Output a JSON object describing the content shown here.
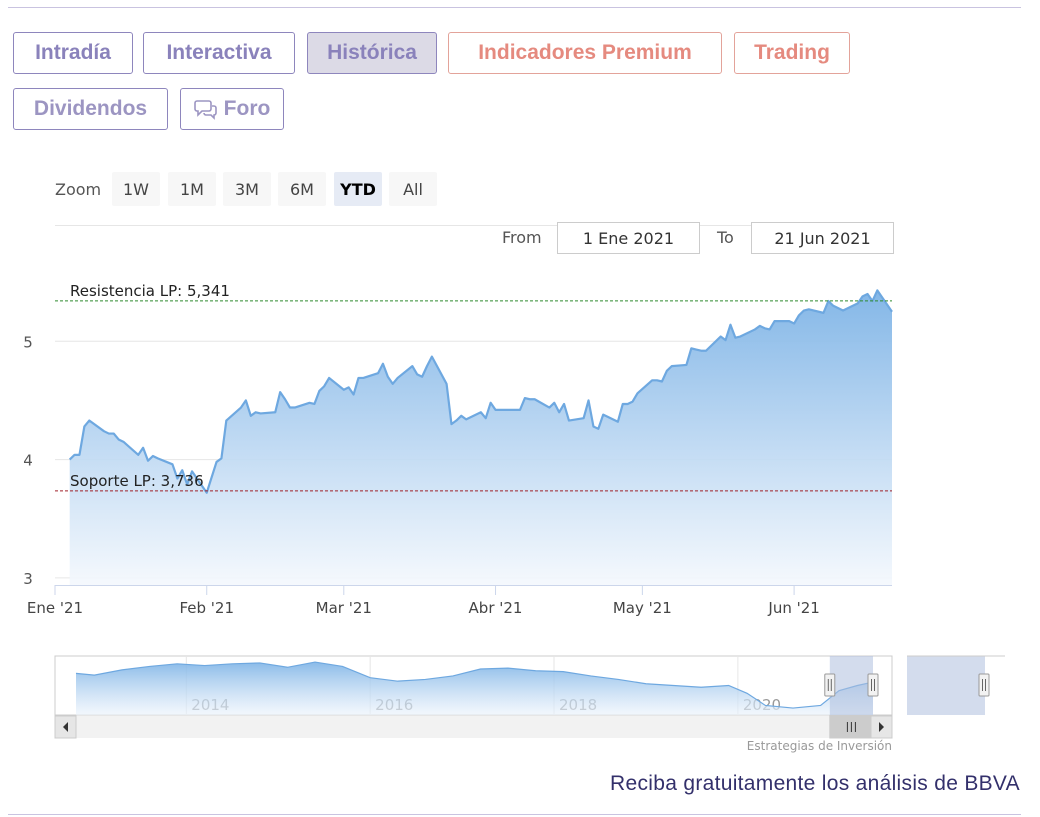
{
  "tabs": [
    {
      "label": "Intradía",
      "style": "purple"
    },
    {
      "label": "Interactiva",
      "style": "purple"
    },
    {
      "label": "Histórica",
      "style": "purple active"
    },
    {
      "label": "Indicadores Premium",
      "style": "red"
    },
    {
      "label": "Trading",
      "style": "red"
    },
    {
      "label": "Dividendos",
      "style": "gray"
    },
    {
      "label": "Foro",
      "style": "gray",
      "icon": "chat-bubbles-icon"
    }
  ],
  "range_selector": {
    "zoom_label": "Zoom",
    "buttons": [
      "1W",
      "1M",
      "3M",
      "6M",
      "YTD",
      "All"
    ],
    "selected": "YTD",
    "from_label": "From",
    "from_value": "1 Ene 2021",
    "to_label": "To",
    "to_value": "21 Jun 2021"
  },
  "chart_data": {
    "type": "area",
    "title": "",
    "xlabel": "",
    "ylabel": "",
    "ylim": [
      2.94,
      5.67
    ],
    "yticks": [
      3,
      4,
      5
    ],
    "xticks": [
      {
        "date": "2021-01-01",
        "label": "Ene '21"
      },
      {
        "date": "2021-02-01",
        "label": "Feb '21"
      },
      {
        "date": "2021-03-01",
        "label": "Mar '21"
      },
      {
        "date": "2021-04-01",
        "label": "Abr '21"
      },
      {
        "date": "2021-05-01",
        "label": "May '21"
      },
      {
        "date": "2021-06-01",
        "label": "Jun '21"
      }
    ],
    "xlim": [
      "2021-01-01",
      "2021-06-21"
    ],
    "series": [
      {
        "x": [
          "2021-01-04",
          "2021-01-05",
          "2021-01-06",
          "2021-01-07",
          "2021-01-08",
          "2021-01-11",
          "2021-01-12",
          "2021-01-13",
          "2021-01-14",
          "2021-01-15",
          "2021-01-18",
          "2021-01-19",
          "2021-01-20",
          "2021-01-21",
          "2021-01-22",
          "2021-01-25",
          "2021-01-26",
          "2021-01-27",
          "2021-01-28",
          "2021-01-29",
          "2021-02-01",
          "2021-02-02",
          "2021-02-03",
          "2021-02-04",
          "2021-02-05",
          "2021-02-08",
          "2021-02-09",
          "2021-02-10",
          "2021-02-11",
          "2021-02-12",
          "2021-02-15",
          "2021-02-16",
          "2021-02-17",
          "2021-02-18",
          "2021-02-19",
          "2021-02-22",
          "2021-02-23",
          "2021-02-24",
          "2021-02-25",
          "2021-02-26",
          "2021-03-01",
          "2021-03-02",
          "2021-03-03",
          "2021-03-04",
          "2021-03-05",
          "2021-03-08",
          "2021-03-09",
          "2021-03-10",
          "2021-03-11",
          "2021-03-12",
          "2021-03-15",
          "2021-03-16",
          "2021-03-17",
          "2021-03-18",
          "2021-03-19",
          "2021-03-22",
          "2021-03-23",
          "2021-03-24",
          "2021-03-25",
          "2021-03-26",
          "2021-03-29",
          "2021-03-30",
          "2021-03-31",
          "2021-04-01",
          "2021-04-06",
          "2021-04-07",
          "2021-04-08",
          "2021-04-09",
          "2021-04-12",
          "2021-04-13",
          "2021-04-14",
          "2021-04-15",
          "2021-04-16",
          "2021-04-19",
          "2021-04-20",
          "2021-04-21",
          "2021-04-22",
          "2021-04-23",
          "2021-04-26",
          "2021-04-27",
          "2021-04-28",
          "2021-04-29",
          "2021-04-30",
          "2021-05-03",
          "2021-05-04",
          "2021-05-05",
          "2021-05-06",
          "2021-05-07",
          "2021-05-10",
          "2021-05-11",
          "2021-05-12",
          "2021-05-13",
          "2021-05-14",
          "2021-05-17",
          "2021-05-18",
          "2021-05-19",
          "2021-05-20",
          "2021-05-21",
          "2021-05-24",
          "2021-05-25",
          "2021-05-26",
          "2021-05-27",
          "2021-05-28",
          "2021-05-31",
          "2021-06-01",
          "2021-06-02",
          "2021-06-03",
          "2021-06-04",
          "2021-06-07",
          "2021-06-08",
          "2021-06-09",
          "2021-06-10",
          "2021-06-11",
          "2021-06-14",
          "2021-06-15",
          "2021-06-16",
          "2021-06-17",
          "2021-06-18",
          "2021-06-21"
        ],
        "y": [
          4.0,
          4.04,
          4.04,
          4.28,
          4.33,
          4.24,
          4.22,
          4.22,
          4.17,
          4.15,
          4.04,
          4.1,
          3.99,
          4.03,
          4.01,
          3.96,
          3.84,
          3.91,
          3.79,
          3.9,
          3.72,
          3.85,
          3.98,
          4.01,
          4.33,
          4.44,
          4.5,
          4.37,
          4.4,
          4.39,
          4.4,
          4.57,
          4.51,
          4.44,
          4.44,
          4.48,
          4.47,
          4.58,
          4.62,
          4.69,
          4.59,
          4.61,
          4.55,
          4.69,
          4.69,
          4.73,
          4.81,
          4.7,
          4.64,
          4.69,
          4.79,
          4.72,
          4.7,
          4.79,
          4.87,
          4.64,
          4.3,
          4.33,
          4.37,
          4.34,
          4.4,
          4.35,
          4.48,
          4.42,
          4.42,
          4.52,
          4.51,
          4.51,
          4.44,
          4.48,
          4.4,
          4.47,
          4.33,
          4.35,
          4.5,
          4.28,
          4.26,
          4.38,
          4.32,
          4.47,
          4.47,
          4.49,
          4.56,
          4.67,
          4.67,
          4.66,
          4.75,
          4.79,
          4.8,
          4.94,
          4.93,
          4.92,
          4.92,
          5.04,
          5.01,
          5.14,
          5.03,
          5.04,
          5.1,
          5.13,
          5.11,
          5.1,
          5.17,
          5.17,
          5.15,
          5.22,
          5.26,
          5.27,
          5.24,
          5.34,
          5.3,
          5.28,
          5.26,
          5.32,
          5.38,
          5.4,
          5.34,
          5.43,
          5.25
        ]
      }
    ],
    "plotlines": [
      {
        "label": "Resistencia LP: 5,341",
        "value": 5.341,
        "color": "#2e8b2e"
      },
      {
        "label": "Soporte LP: 3,736",
        "value": 3.736,
        "color": "#a0202a"
      }
    ],
    "navigator": {
      "x": [
        2012.8,
        2013.0,
        2013.3,
        2013.6,
        2013.9,
        2014.2,
        2014.5,
        2014.8,
        2015.1,
        2015.4,
        2015.7,
        2016.0,
        2016.3,
        2016.6,
        2016.9,
        2017.2,
        2017.5,
        2017.8,
        2018.1,
        2018.4,
        2018.7,
        2019.0,
        2019.3,
        2019.6,
        2019.9,
        2020.1,
        2020.3,
        2020.6,
        2020.9,
        2021.1,
        2021.3,
        2021.47
      ],
      "y": [
        6.3,
        6.1,
        6.7,
        7.1,
        7.4,
        7.2,
        7.4,
        7.5,
        7.0,
        7.6,
        7.1,
        5.8,
        5.4,
        5.6,
        6.0,
        6.8,
        6.9,
        6.6,
        6.5,
        6.0,
        5.6,
        5.1,
        4.9,
        4.7,
        4.9,
        4.0,
        2.6,
        2.3,
        2.6,
        4.3,
        4.9,
        5.3
      ],
      "labels": [
        "2014",
        "2016",
        "2018",
        "2020"
      ],
      "label_years": [
        2014,
        2016,
        2018,
        2020
      ],
      "xmin": 2012.8,
      "xmax": 2021.47,
      "ymin": 1.5,
      "ymax": 8.3,
      "selected": [
        2021.0,
        2021.47
      ]
    }
  },
  "colors": {
    "line": "#6ea8e0",
    "area_top": "#7db3e6",
    "area_bottom": "#f4f8fd",
    "grid": "#e6e6e6",
    "nav_mask": "#aebfdf"
  },
  "credit": "Estrategias de Inversión",
  "cta": "Reciba gratuitamente los análisis de BBVA"
}
